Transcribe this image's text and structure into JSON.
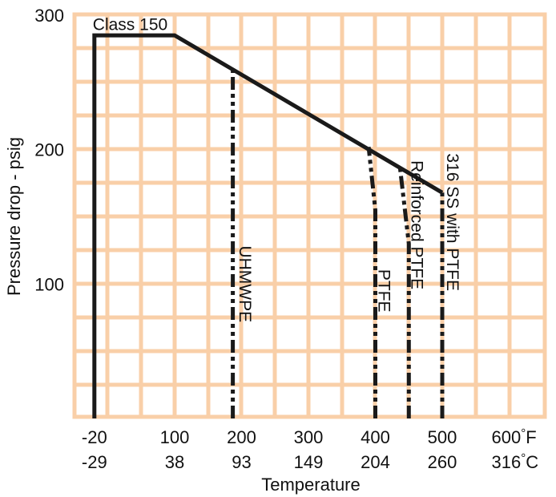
{
  "colors": {
    "grid": "#f9cfa8",
    "line": "#1a1a1a",
    "background": "#ffffff"
  },
  "chart_data": {
    "type": "line",
    "title": "",
    "xlabel": "Temperature",
    "ylabel": "Pressure drop - psig",
    "xlim": [
      -30,
      640
    ],
    "ylim": [
      0,
      300
    ],
    "grid": true,
    "x_unit": "°F",
    "x_secondary_unit": "°C",
    "xticks": [
      {
        "f": -20,
        "f_label": "-20",
        "c_label": "-29"
      },
      {
        "f": 100,
        "f_label": "100",
        "c_label": "38"
      },
      {
        "f": 200,
        "f_label": "200",
        "c_label": "93"
      },
      {
        "f": 300,
        "f_label": "300",
        "c_label": "149"
      },
      {
        "f": 400,
        "f_label": "400",
        "c_label": "204"
      },
      {
        "f": 500,
        "f_label": "500",
        "c_label": "260"
      },
      {
        "f": 600,
        "f_label": "600",
        "c_label": "316",
        "unit": true
      }
    ],
    "yticks": [
      {
        "value": 100,
        "label": "100"
      },
      {
        "value": 200,
        "label": "200"
      },
      {
        "value": 300,
        "label": "300"
      }
    ],
    "series": [
      {
        "name": "Class 150",
        "style": "solid",
        "points": [
          [
            -20,
            0
          ],
          [
            -20,
            285
          ],
          [
            100,
            285
          ],
          [
            500,
            168
          ]
        ]
      },
      {
        "name": "UHMWPE",
        "style": "dashdotdot",
        "points": [
          [
            187,
            0
          ],
          [
            187,
            260
          ]
        ]
      },
      {
        "name": "PTFE",
        "style": "dashdotdot",
        "points": [
          [
            400,
            0
          ],
          [
            400,
            155
          ],
          [
            390,
            202
          ]
        ]
      },
      {
        "name": "Reinforced PTFE",
        "style": "dashdotdot",
        "points": [
          [
            450,
            0
          ],
          [
            450,
            130
          ],
          [
            437,
            186
          ]
        ]
      },
      {
        "name": "316 SS with PTFE",
        "style": "dashdotdot",
        "points": [
          [
            500,
            0
          ],
          [
            500,
            168
          ]
        ]
      }
    ],
    "annotations": [
      {
        "text": "Class 150",
        "at": [
          -20,
          289
        ],
        "rotate": 0
      },
      {
        "text": "UHMWPE",
        "at": [
          197,
          100
        ],
        "rotate": 90
      },
      {
        "text": "PTFE",
        "at": [
          405,
          95
        ],
        "rotate": 90
      },
      {
        "text": "Reinforced PTFE",
        "at": [
          454,
          144
        ],
        "rotate": 90
      },
      {
        "text": "316 SS with PTFE",
        "at": [
          507,
          146
        ],
        "rotate": 90
      }
    ]
  }
}
